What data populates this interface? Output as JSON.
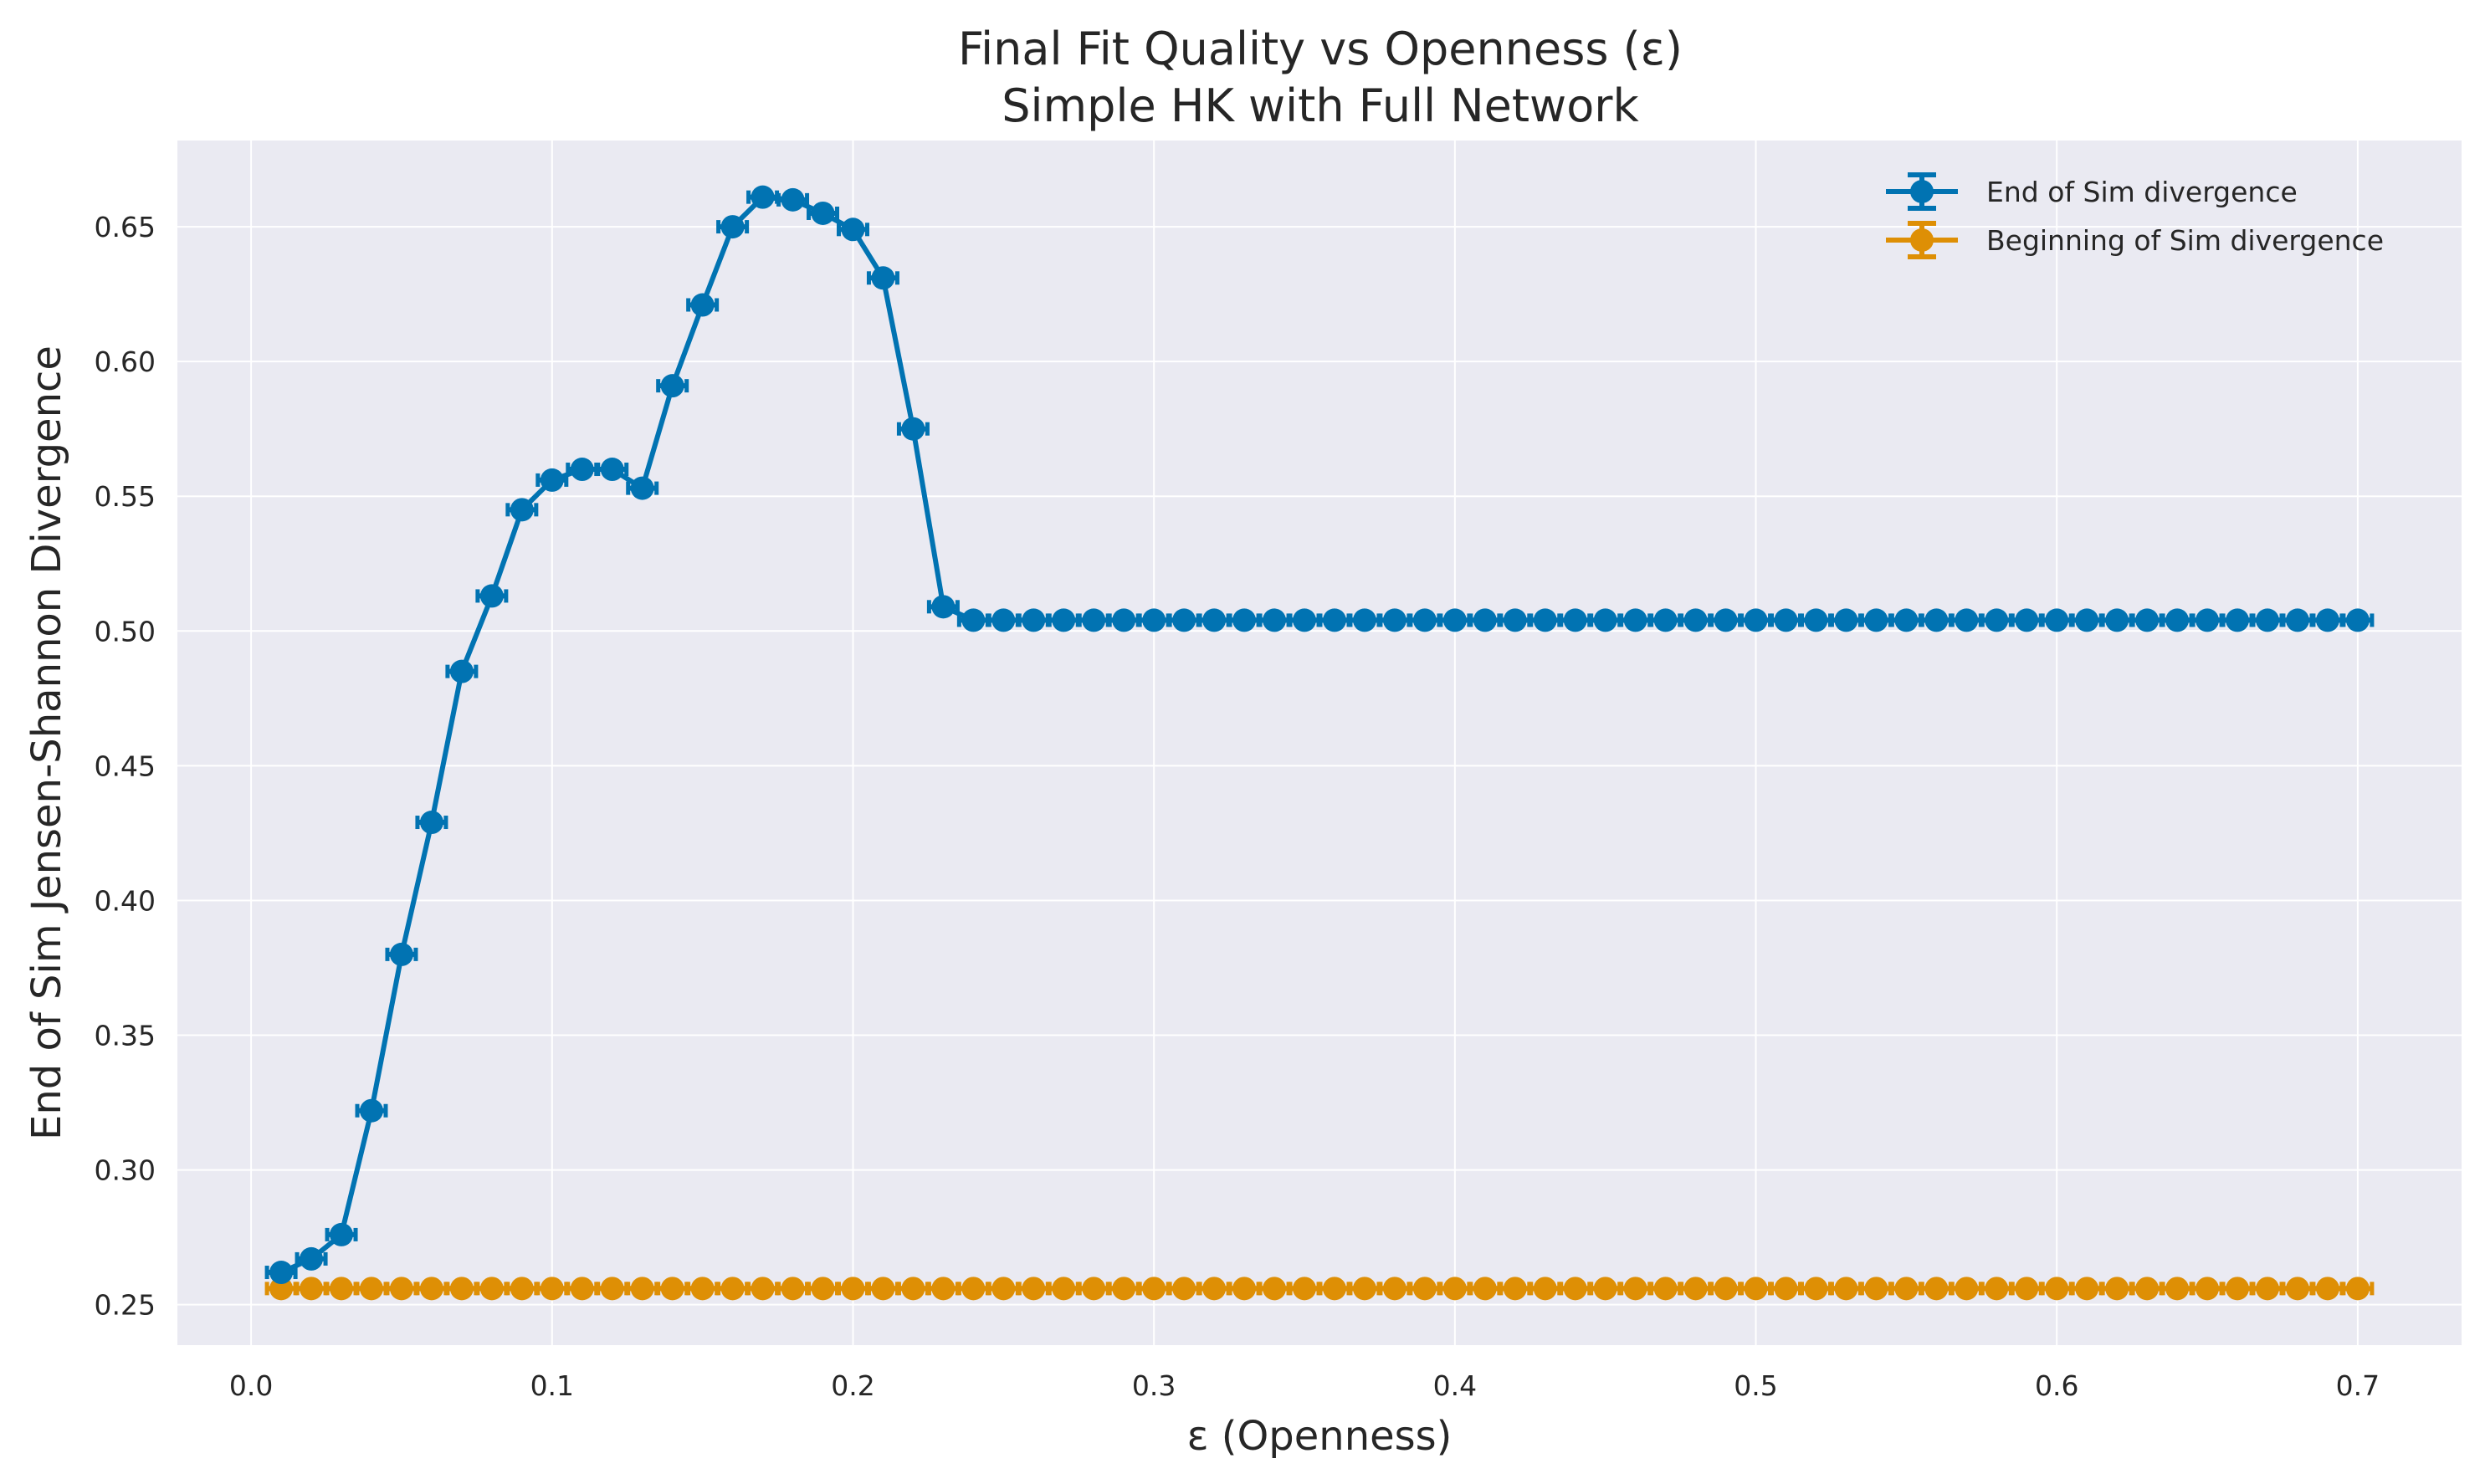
{
  "chart_data": {
    "type": "line",
    "title": "Final Fit Quality vs Openness (ε)",
    "subtitle": "Simple HK with Full Network",
    "xlabel": "ε (Openness)",
    "ylabel": "End of Sim Jensen-Shannon Divergence",
    "xlim": [
      -0.0245,
      0.7345
    ],
    "ylim": [
      0.235,
      0.682
    ],
    "xticks": [
      "0.0",
      "0.1",
      "0.2",
      "0.3",
      "0.4",
      "0.5",
      "0.6",
      "0.7"
    ],
    "xtick_values": [
      0.0,
      0.1,
      0.2,
      0.3,
      0.4,
      0.5,
      0.6,
      0.7
    ],
    "yticks": [
      "0.25",
      "0.30",
      "0.35",
      "0.40",
      "0.45",
      "0.50",
      "0.55",
      "0.60",
      "0.65"
    ],
    "ytick_values": [
      0.25,
      0.3,
      0.35,
      0.4,
      0.45,
      0.5,
      0.55,
      0.6,
      0.65
    ],
    "grid": true,
    "legend_position": "top-right",
    "background_color": "#EAEAF2",
    "grid_color": "#FFFFFF",
    "x": [
      0.01,
      0.02,
      0.03,
      0.04,
      0.05,
      0.06,
      0.07,
      0.08,
      0.09,
      0.1,
      0.11,
      0.12,
      0.13,
      0.14,
      0.15,
      0.16,
      0.17,
      0.18,
      0.19,
      0.2,
      0.21,
      0.22,
      0.23,
      0.24,
      0.25,
      0.26,
      0.27,
      0.28,
      0.29,
      0.3,
      0.31,
      0.32,
      0.33,
      0.34,
      0.35,
      0.36,
      0.37,
      0.38,
      0.39,
      0.4,
      0.41,
      0.42,
      0.43,
      0.44,
      0.45,
      0.46,
      0.47,
      0.48,
      0.49,
      0.5,
      0.51,
      0.52,
      0.53,
      0.54,
      0.55,
      0.56,
      0.57,
      0.58,
      0.59,
      0.6,
      0.61,
      0.62,
      0.63,
      0.64,
      0.65,
      0.66,
      0.67,
      0.68,
      0.69,
      0.7
    ],
    "series": [
      {
        "name": "End of Sim divergence",
        "color": "#0173B2",
        "values": [
          0.262,
          0.267,
          0.276,
          0.322,
          0.38,
          0.429,
          0.485,
          0.513,
          0.545,
          0.556,
          0.56,
          0.56,
          0.553,
          0.591,
          0.621,
          0.65,
          0.661,
          0.66,
          0.655,
          0.649,
          0.631,
          0.575,
          0.509,
          0.504,
          0.504,
          0.504,
          0.504,
          0.504,
          0.504,
          0.504,
          0.504,
          0.504,
          0.504,
          0.504,
          0.504,
          0.504,
          0.504,
          0.504,
          0.504,
          0.504,
          0.504,
          0.504,
          0.504,
          0.504,
          0.504,
          0.504,
          0.504,
          0.504,
          0.504,
          0.504,
          0.504,
          0.504,
          0.504,
          0.504,
          0.504,
          0.504,
          0.504,
          0.504,
          0.504,
          0.504,
          0.504,
          0.504,
          0.504,
          0.504,
          0.504,
          0.504,
          0.504,
          0.504,
          0.504,
          0.504
        ]
      },
      {
        "name": "Beginning of Sim divergence",
        "color": "#DE8F05",
        "values": [
          0.256,
          0.256,
          0.256,
          0.256,
          0.256,
          0.256,
          0.256,
          0.256,
          0.256,
          0.256,
          0.256,
          0.256,
          0.256,
          0.256,
          0.256,
          0.256,
          0.256,
          0.256,
          0.256,
          0.256,
          0.256,
          0.256,
          0.256,
          0.256,
          0.256,
          0.256,
          0.256,
          0.256,
          0.256,
          0.256,
          0.256,
          0.256,
          0.256,
          0.256,
          0.256,
          0.256,
          0.256,
          0.256,
          0.256,
          0.256,
          0.256,
          0.256,
          0.256,
          0.256,
          0.256,
          0.256,
          0.256,
          0.256,
          0.256,
          0.256,
          0.256,
          0.256,
          0.256,
          0.256,
          0.256,
          0.256,
          0.256,
          0.256,
          0.256,
          0.256,
          0.256,
          0.256,
          0.256,
          0.256,
          0.256,
          0.256,
          0.256,
          0.256,
          0.256,
          0.256
        ]
      }
    ]
  }
}
